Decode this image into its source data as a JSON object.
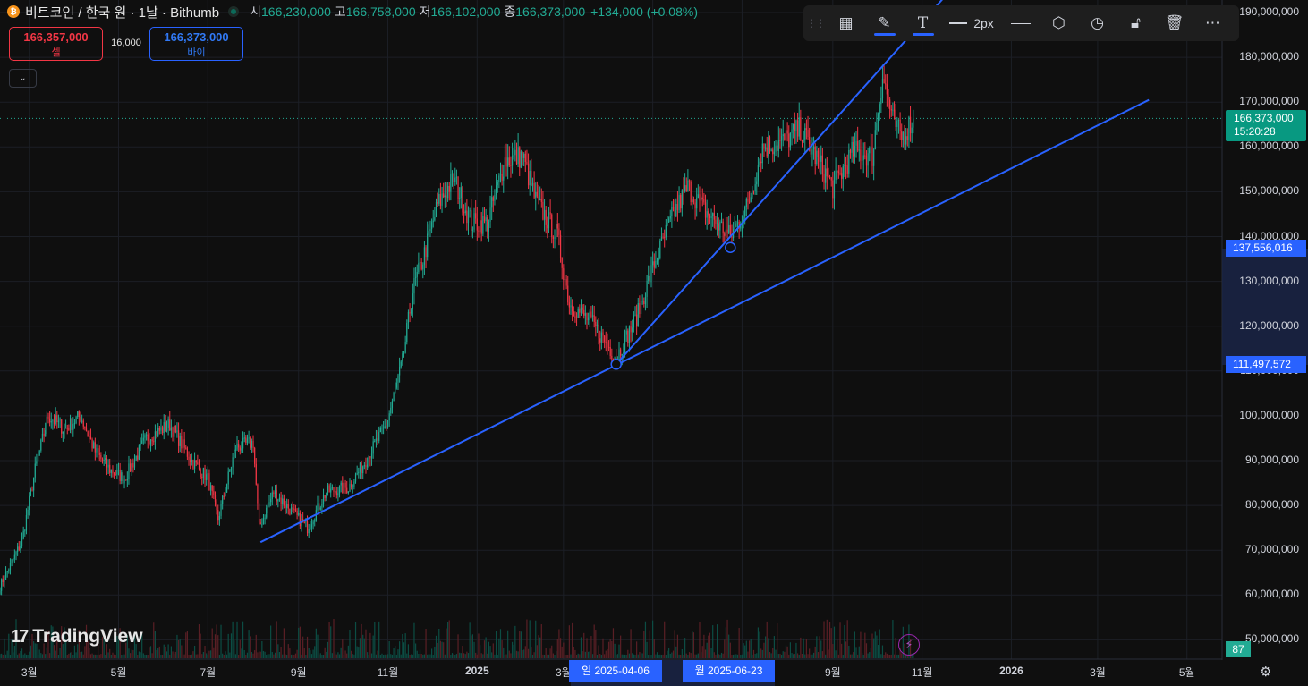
{
  "header": {
    "symbol_title": "비트코인 / 한국 원 · 1날 · Bithumb",
    "coin_icon": "₿",
    "open_label": "시",
    "open_value": "166,230,000",
    "high_label": "고",
    "high_value": "166,758,000",
    "low_label": "저",
    "low_value": "166,102,000",
    "close_label": "종",
    "close_value": "166,373,000",
    "change": "+134,000 (+0.08%)"
  },
  "trade": {
    "sell_price": "166,357,000",
    "sell_label": "셀",
    "spread": "16,000",
    "buy_price": "166,373,000",
    "buy_label": "바이"
  },
  "toolbar": {
    "width_label": "2px",
    "icons": [
      "drag-grip-icon",
      "add-shapes-icon",
      "pencil-icon",
      "text-icon",
      "line-width-icon",
      "line-style-icon",
      "hexagon-icon",
      "alert-clock-icon",
      "unlock-icon",
      "trash-icon",
      "more-icon"
    ]
  },
  "price_axis": {
    "labels": [
      "190,000,000",
      "180,000,000",
      "170,000,000",
      "160,000,000",
      "150,000,000",
      "140,000,000",
      "130,000,000",
      "120,000,000",
      "110,000,000",
      "100,000,000",
      "90,000,000",
      "80,000,000",
      "70,000,000",
      "60,000,000",
      "50,000,000"
    ],
    "current_price": "166,373,000",
    "countdown": "15:20:28",
    "tag_upper": "137,556,016",
    "tag_lower": "111,497,572",
    "volume_value": "87"
  },
  "time_axis": {
    "labels": [
      "3월",
      "5월",
      "7월",
      "9월",
      "11월",
      "2025",
      "3월",
      "5월",
      "7월",
      "9월",
      "11월",
      "2026",
      "3월",
      "5월"
    ],
    "date_tag_left": "일 2025-04-06",
    "date_tag_right": "월 2025-06-23"
  },
  "branding": {
    "logo_text": "TradingView"
  },
  "colors": {
    "up": "#22ab94",
    "down": "#f23645",
    "trendline": "#2962ff",
    "background": "#0f0f0f"
  },
  "chart_data": {
    "type": "candlestick",
    "symbol": "BTC/KRW",
    "interval": "1D",
    "exchange": "Bithumb",
    "ylim": [
      50000000,
      190000000
    ],
    "x_range": [
      "2024-02-10",
      "2026-05-25"
    ],
    "close_path": [
      [
        "2024-02-10",
        62000000
      ],
      [
        "2024-02-25",
        72000000
      ],
      [
        "2024-03-05",
        88000000
      ],
      [
        "2024-03-14",
        100000000
      ],
      [
        "2024-03-25",
        97000000
      ],
      [
        "2024-04-05",
        100000000
      ],
      [
        "2024-04-15",
        92000000
      ],
      [
        "2024-04-25",
        88000000
      ],
      [
        "2024-05-05",
        86000000
      ],
      [
        "2024-05-20",
        95000000
      ],
      [
        "2024-06-05",
        98000000
      ],
      [
        "2024-06-20",
        90000000
      ],
      [
        "2024-07-01",
        86000000
      ],
      [
        "2024-07-08",
        77000000
      ],
      [
        "2024-07-20",
        93000000
      ],
      [
        "2024-08-01",
        94000000
      ],
      [
        "2024-08-05",
        75000000
      ],
      [
        "2024-08-15",
        83000000
      ],
      [
        "2024-09-01",
        77000000
      ],
      [
        "2024-09-07",
        75000000
      ],
      [
        "2024-09-20",
        83000000
      ],
      [
        "2024-10-05",
        84000000
      ],
      [
        "2024-10-15",
        89000000
      ],
      [
        "2024-10-31",
        98000000
      ],
      [
        "2024-11-11",
        112000000
      ],
      [
        "2024-11-18",
        128000000
      ],
      [
        "2024-11-25",
        135000000
      ],
      [
        "2024-12-05",
        147000000
      ],
      [
        "2024-12-16",
        153000000
      ],
      [
        "2024-12-28",
        143000000
      ],
      [
        "2025-01-08",
        143000000
      ],
      [
        "2025-01-20",
        157000000
      ],
      [
        "2025-02-01",
        158000000
      ],
      [
        "2025-02-10",
        148000000
      ],
      [
        "2025-02-25",
        140000000
      ],
      [
        "2025-03-05",
        125000000
      ],
      [
        "2025-03-20",
        121000000
      ],
      [
        "2025-04-06",
        113000000
      ],
      [
        "2025-04-20",
        122000000
      ],
      [
        "2025-05-01",
        133000000
      ],
      [
        "2025-05-15",
        145000000
      ],
      [
        "2025-05-25",
        151000000
      ],
      [
        "2025-06-05",
        146000000
      ],
      [
        "2025-06-23",
        140000000
      ],
      [
        "2025-07-05",
        147000000
      ],
      [
        "2025-07-15",
        160000000
      ],
      [
        "2025-07-28",
        161000000
      ],
      [
        "2025-08-10",
        164000000
      ],
      [
        "2025-08-20",
        158000000
      ],
      [
        "2025-09-01",
        151000000
      ],
      [
        "2025-09-15",
        159000000
      ],
      [
        "2025-09-28",
        158000000
      ],
      [
        "2025-10-05",
        176000000
      ],
      [
        "2025-10-12",
        166000000
      ],
      [
        "2025-10-18",
        162000000
      ],
      [
        "2025-10-26",
        166373000
      ]
    ],
    "trendlines": [
      {
        "points": [
          [
            "2024-08-06",
            71800000
          ],
          [
            "2025-04-06",
            111497572
          ],
          [
            "2026-04-05",
            170500000
          ]
        ]
      },
      {
        "points": [
          [
            "2025-04-06",
            111497572
          ],
          [
            "2025-06-23",
            137556016
          ],
          [
            "2025-11-15",
            193000000
          ]
        ]
      }
    ],
    "last_price": 166373000
  }
}
